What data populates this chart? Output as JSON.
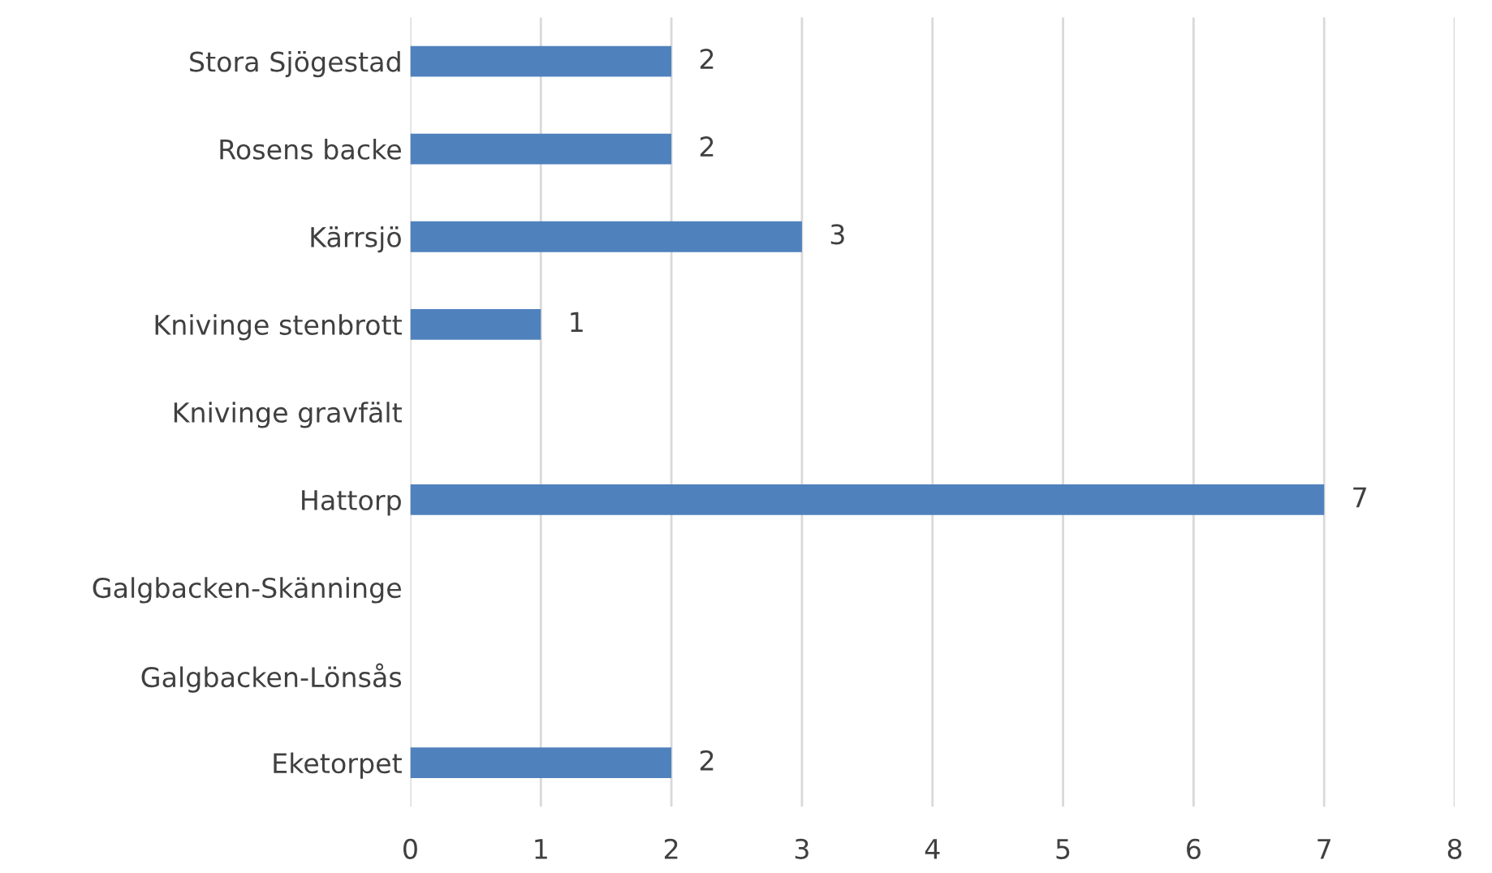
{
  "chart_data": {
    "type": "bar",
    "orientation": "horizontal",
    "categories": [
      "Stora Sjögestad",
      "Rosens backe",
      "Kärrsjö",
      "Knivinge stenbrott",
      "Knivinge gravfält",
      "Hattorp",
      "Galgbacken-Skänninge",
      "Galgbacken-Lönsås",
      "Eketorpet"
    ],
    "values": [
      2,
      2,
      3,
      1,
      null,
      7,
      null,
      null,
      2
    ],
    "color": "#4f81bd",
    "xlim": [
      0,
      8
    ],
    "xticks": [
      0,
      1,
      2,
      3,
      4,
      5,
      6,
      7,
      8
    ],
    "grid": "x",
    "data_labels": true
  }
}
